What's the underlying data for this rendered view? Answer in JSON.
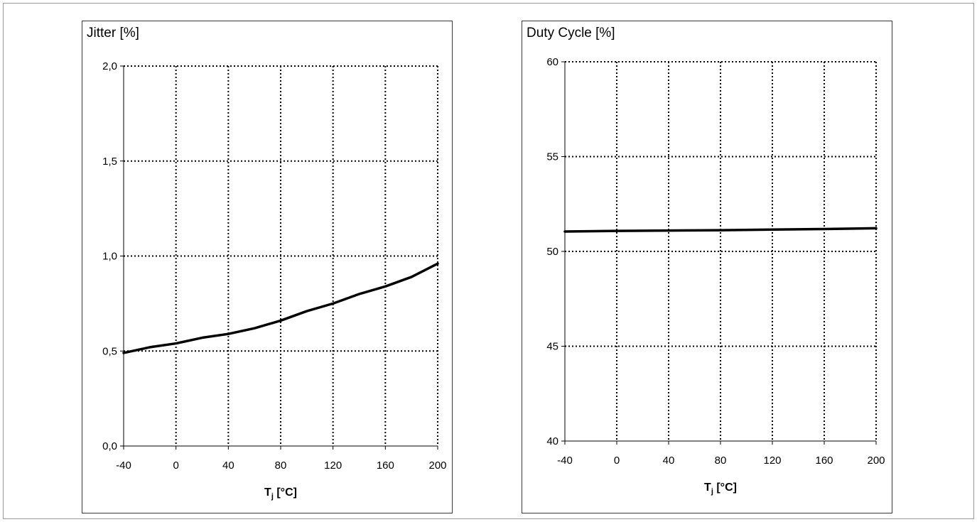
{
  "chart_data": [
    {
      "type": "line",
      "title": "Jitter [%]",
      "xlabel_main": "T",
      "xlabel_sub": "j",
      "xlabel_rest": " [°C]",
      "xlim": [
        -40,
        200
      ],
      "ylim": [
        0.0,
        2.0
      ],
      "x_ticks": [
        "-40",
        "0",
        "40",
        "80",
        "120",
        "160",
        "200"
      ],
      "x_tick_values": [
        -40,
        0,
        40,
        80,
        120,
        160,
        200
      ],
      "y_ticks": [
        "0,0",
        "0,5",
        "1,0",
        "1,5",
        "2,0"
      ],
      "y_tick_values": [
        0.0,
        0.5,
        1.0,
        1.5,
        2.0
      ],
      "grid": true,
      "series": [
        {
          "x": [
            -40,
            -20,
            0,
            20,
            40,
            60,
            80,
            100,
            120,
            140,
            160,
            180,
            200
          ],
          "y": [
            0.49,
            0.52,
            0.54,
            0.57,
            0.59,
            0.62,
            0.66,
            0.71,
            0.75,
            0.8,
            0.84,
            0.89,
            0.96
          ]
        }
      ]
    },
    {
      "type": "line",
      "title": "Duty Cycle [%]",
      "xlabel_main": "T",
      "xlabel_sub": "j",
      "xlabel_rest": " [°C]",
      "xlim": [
        -40,
        200
      ],
      "ylim": [
        40,
        60
      ],
      "x_ticks": [
        "-40",
        "0",
        "40",
        "80",
        "120",
        "160",
        "200"
      ],
      "x_tick_values": [
        -40,
        0,
        40,
        80,
        120,
        160,
        200
      ],
      "y_ticks": [
        "40",
        "45",
        "50",
        "55",
        "60"
      ],
      "y_tick_values": [
        40,
        45,
        50,
        55,
        60
      ],
      "grid": true,
      "series": [
        {
          "x": [
            -40,
            0,
            40,
            80,
            120,
            160,
            200
          ],
          "y": [
            51.05,
            51.08,
            51.1,
            51.12,
            51.15,
            51.18,
            51.22
          ]
        }
      ]
    }
  ]
}
